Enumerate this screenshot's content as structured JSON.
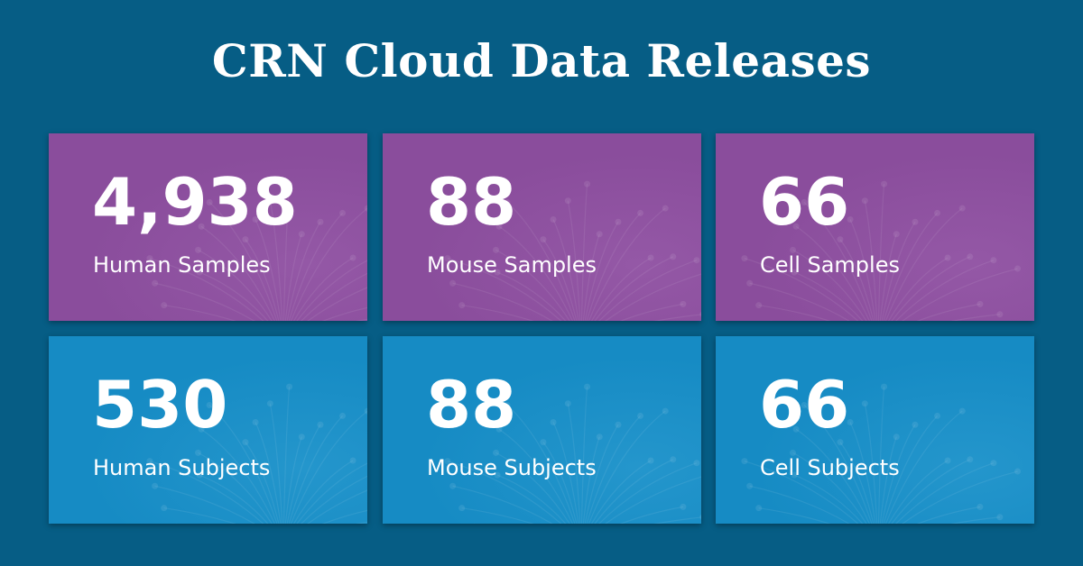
{
  "header": {
    "title": "CRN Cloud Data Releases"
  },
  "cards": [
    {
      "value": "4,938",
      "label": "Human Samples"
    },
    {
      "value": "88",
      "label": "Mouse Samples"
    },
    {
      "value": "66",
      "label": "Cell Samples"
    },
    {
      "value": "530",
      "label": "Human Subjects"
    },
    {
      "value": "88",
      "label": "Mouse Subjects"
    },
    {
      "value": "66",
      "label": "Cell Subjects"
    }
  ]
}
